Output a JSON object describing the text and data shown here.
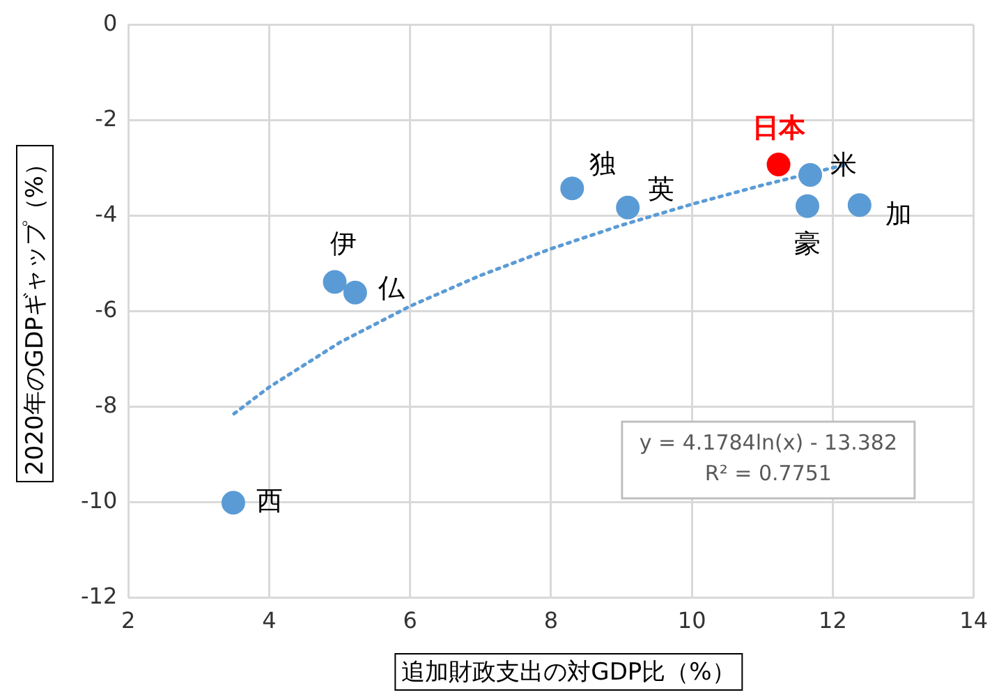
{
  "chart_data": {
    "type": "scatter",
    "xlabel": "追加財政支出の対GDP比（%）",
    "ylabel": "2020年のGDPギャップ（%）",
    "xlim": [
      2,
      14
    ],
    "xticks": [
      2,
      4,
      6,
      8,
      10,
      12,
      14
    ],
    "ylim": [
      -12,
      0
    ],
    "yticks": [
      -12,
      -10,
      -8,
      -6,
      -4,
      -2,
      0
    ],
    "grid": true,
    "legend": false,
    "marker": "circle",
    "series": [
      {
        "color": "#5b9bd5",
        "x": [
          3.49,
          4.93,
          5.22,
          8.3,
          9.09,
          11.68,
          11.64,
          12.38
        ],
        "values": [
          -10.01,
          -5.39,
          -5.61,
          -3.43,
          -3.83,
          -3.15,
          -3.8,
          -3.78
        ]
      },
      {
        "name": "日本",
        "color": "#ff0000",
        "x": [
          11.23
        ],
        "values": [
          -2.93
        ]
      },
      {
        "type": "line",
        "line_style": "dotted",
        "marker": "none",
        "color": "#5b9bd5",
        "x": [
          3.5,
          4,
          5,
          6,
          7,
          8,
          9,
          10,
          11,
          12,
          12.2
        ],
        "values": [
          -8.147,
          -7.59,
          -6.657,
          -5.895,
          -5.251,
          -4.694,
          -4.201,
          -3.761,
          -3.363,
          -2.999,
          -2.931
        ]
      }
    ],
    "annotations": [
      {
        "text": "西",
        "x": 3.49,
        "y": -10.01
      },
      {
        "text": "伊",
        "x": 4.93,
        "y": -5.39
      },
      {
        "text": "仏",
        "x": 5.22,
        "y": -5.61
      },
      {
        "text": "独",
        "x": 8.3,
        "y": -3.43
      },
      {
        "text": "英",
        "x": 9.09,
        "y": -3.83
      },
      {
        "text": "米",
        "x": 11.68,
        "y": -3.15
      },
      {
        "text": "豪",
        "x": 11.64,
        "y": -3.8
      },
      {
        "text": "加",
        "x": 12.38,
        "y": -3.78
      },
      "y = 4.1784ln(x) - 13.382\nR² = 0.7751"
    ]
  }
}
